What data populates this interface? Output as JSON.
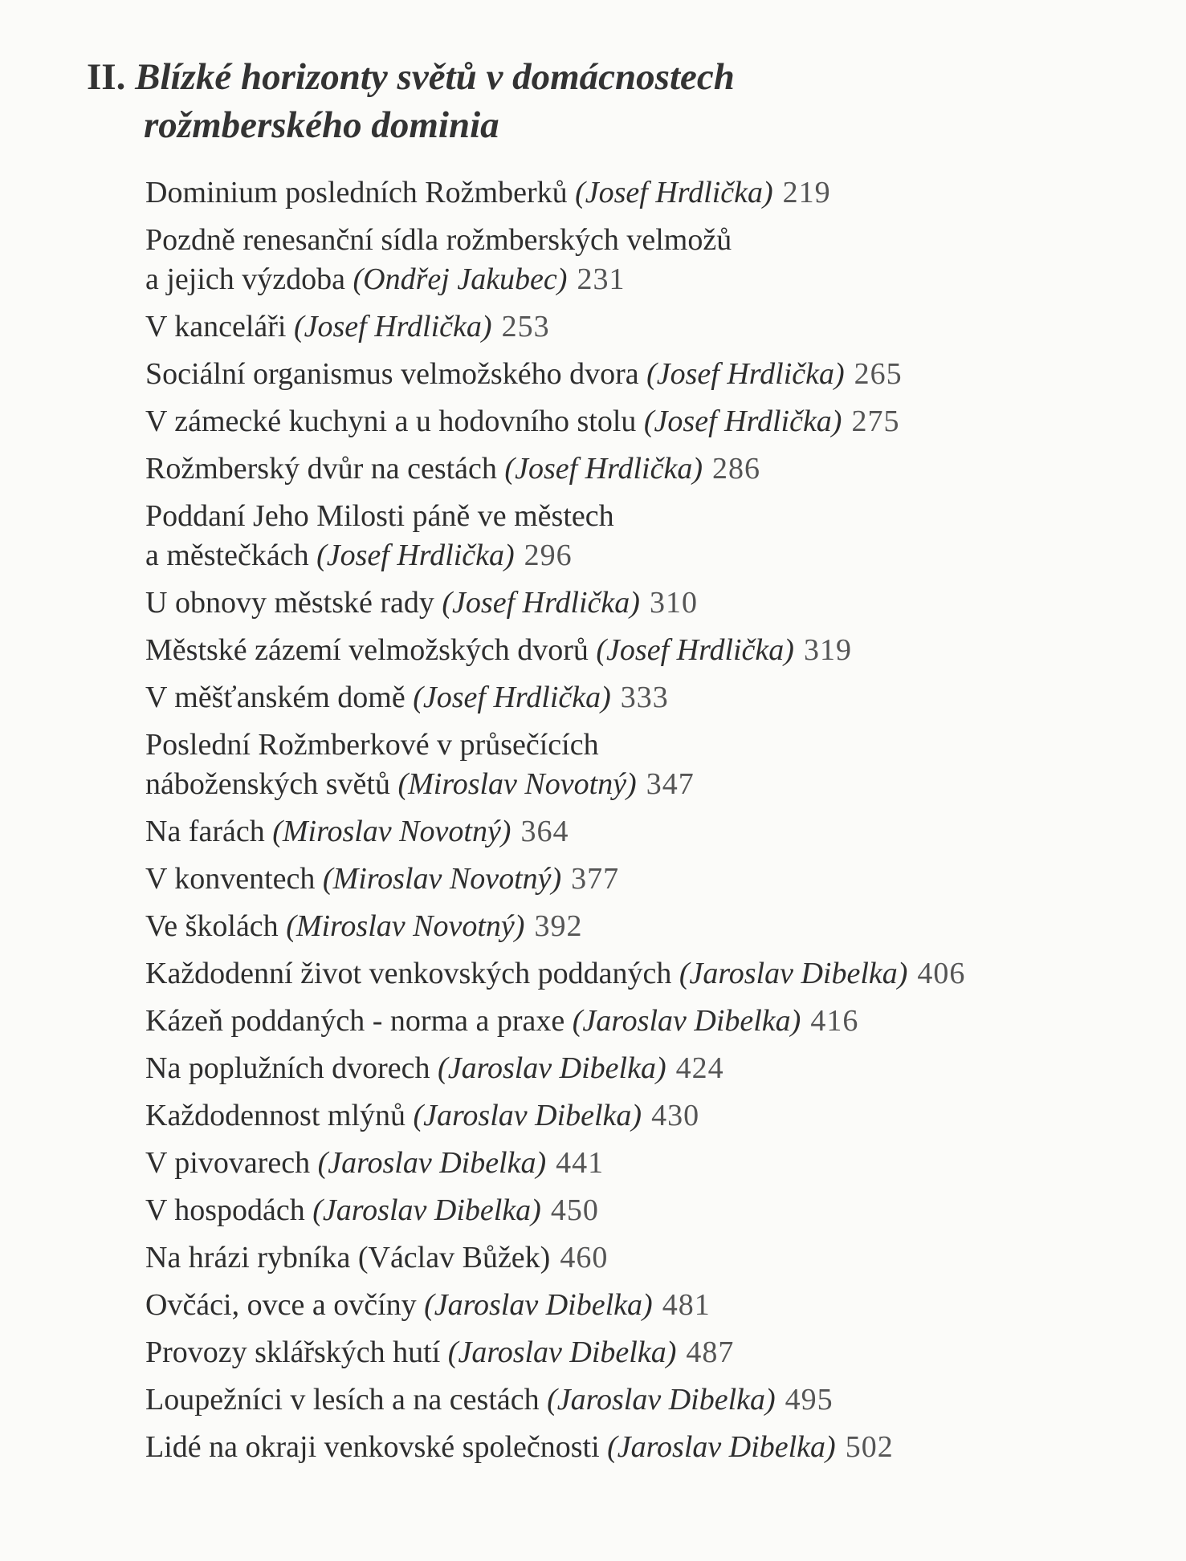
{
  "heading": {
    "number": "II.",
    "line1": "Blízké horizonty světů v domácnostech",
    "line2": "rožmberského dominia"
  },
  "entries": [
    {
      "lines": [
        "Dominium posledních Rožmberků"
      ],
      "author": "(Josef Hrdlička)",
      "page": "219"
    },
    {
      "lines": [
        "Pozdně renesanční sídla rožmberských velmožů",
        "a jejich výzdoba"
      ],
      "author": "(Ondřej Jakubec)",
      "page": "231"
    },
    {
      "lines": [
        "V kanceláři"
      ],
      "author": "(Josef Hrdlička)",
      "page": "253"
    },
    {
      "lines": [
        "Sociální organismus velmožského dvora"
      ],
      "author": "(Josef Hrdlička)",
      "page": "265"
    },
    {
      "lines": [
        "V zámecké kuchyni a u hodovního stolu"
      ],
      "author": "(Josef Hrdlička)",
      "page": "275"
    },
    {
      "lines": [
        "Rožmberský dvůr na cestách"
      ],
      "author": "(Josef Hrdlička)",
      "page": "286"
    },
    {
      "lines": [
        "Poddaní Jeho Milosti páně ve městech",
        "a městečkách"
      ],
      "author": "(Josef Hrdlička)",
      "page": "296"
    },
    {
      "lines": [
        "U obnovy městské rady"
      ],
      "author": "(Josef Hrdlička)",
      "page": "310"
    },
    {
      "lines": [
        "Městské zázemí velmožských dvorů"
      ],
      "author": "(Josef Hrdlička)",
      "page": "319"
    },
    {
      "lines": [
        "V měšťanském domě"
      ],
      "author": "(Josef Hrdlička)",
      "page": "333"
    },
    {
      "lines": [
        "Poslední Rožmberkové v průsečících",
        "náboženských světů"
      ],
      "author": "(Miroslav Novotný)",
      "page": "347"
    },
    {
      "lines": [
        "Na farách"
      ],
      "author": "(Miroslav Novotný)",
      "page": "364"
    },
    {
      "lines": [
        "V konventech"
      ],
      "author": "(Miroslav Novotný)",
      "page": "377"
    },
    {
      "lines": [
        "Ve školách"
      ],
      "author": "(Miroslav Novotný)",
      "page": "392"
    },
    {
      "lines": [
        "Každodenní život venkovských poddaných"
      ],
      "author": "(Jaroslav Dibelka)",
      "page": "406"
    },
    {
      "lines": [
        "Kázeň poddaných - norma a praxe"
      ],
      "author": "(Jaroslav Dibelka)",
      "page": "416"
    },
    {
      "lines": [
        "Na poplužních dvorech"
      ],
      "author": "(Jaroslav Dibelka)",
      "page": "424"
    },
    {
      "lines": [
        "Každodennost mlýnů"
      ],
      "author": "(Jaroslav Dibelka)",
      "page": "430"
    },
    {
      "lines": [
        "V pivovarech"
      ],
      "author": "(Jaroslav Dibelka)",
      "page": "441"
    },
    {
      "lines": [
        "V hospodách"
      ],
      "author": "(Jaroslav Dibelka)",
      "page": "450"
    },
    {
      "lines": [
        "Na hrázi rybníka"
      ],
      "author": "(Václav Bůžek)",
      "page": "460",
      "upright": true
    },
    {
      "lines": [
        "Ovčáci, ovce a ovčíny"
      ],
      "author": "(Jaroslav Dibelka)",
      "page": "481"
    },
    {
      "lines": [
        "Provozy sklářských hutí"
      ],
      "author": "(Jaroslav Dibelka)",
      "page": "487"
    },
    {
      "lines": [
        "Loupežníci v lesích a na cestách"
      ],
      "author": "(Jaroslav Dibelka)",
      "page": "495"
    },
    {
      "lines": [
        "Lidé na okraji venkovské společnosti"
      ],
      "author": "(Jaroslav Dibelka)",
      "page": "502"
    }
  ]
}
